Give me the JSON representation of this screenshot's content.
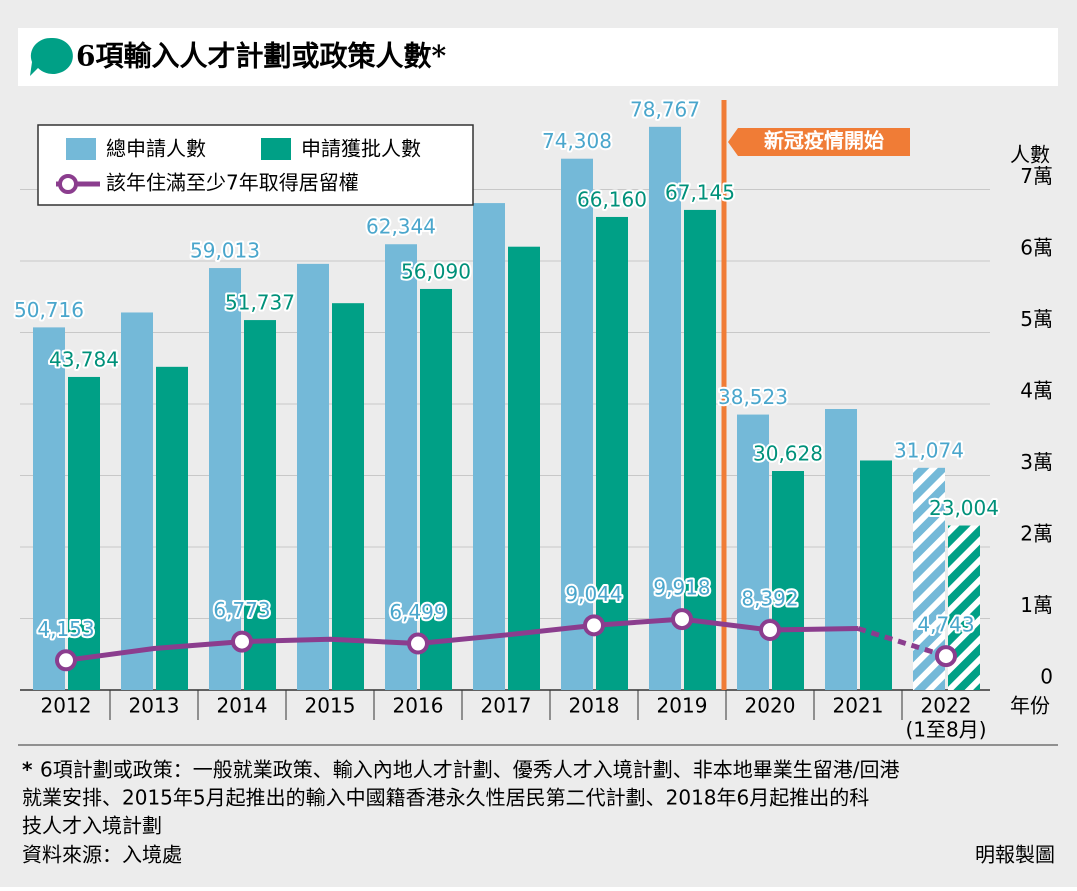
{
  "chart_data": {
    "type": "bar_line",
    "title": "6項輸入人才計劃或政策人數*",
    "y_axis_label": "人數",
    "x_axis_label": "年份",
    "categories": [
      "2012",
      "2013",
      "2014",
      "2015",
      "2016",
      "2017",
      "2018",
      "2019",
      "2020",
      "2021",
      "2022"
    ],
    "last_category_note": "(1至8月)",
    "partial_last": true,
    "series": [
      {
        "name": "總申請人數",
        "color": "#74b9d8",
        "label_color": "#4aa6cc",
        "values": [
          50716,
          52800,
          59013,
          59600,
          62344,
          68100,
          74308,
          78767,
          38523,
          39300,
          31074
        ],
        "value_labels": [
          "50,716",
          null,
          "59,013",
          null,
          "62,344",
          null,
          "74,308",
          "78,767",
          "38,523",
          null,
          "31,074"
        ]
      },
      {
        "name": "申請獲批人數",
        "color": "#00a086",
        "label_color": "#00917a",
        "values": [
          43784,
          45200,
          51737,
          54100,
          56090,
          62000,
          66160,
          67145,
          30628,
          32100,
          23004
        ],
        "value_labels": [
          "43,784",
          null,
          "51,737",
          null,
          "56,090",
          null,
          "66,160",
          "67,145",
          "30,628",
          null,
          "23,004"
        ]
      },
      {
        "name": "該年住滿至少7年取得居留權",
        "color": "#8b3d8e",
        "label_color": "#4aa6cc",
        "kind": "line",
        "values": [
          4153,
          5800,
          6773,
          7100,
          6499,
          7700,
          9044,
          9918,
          8392,
          8600,
          4743
        ],
        "value_labels": [
          "4,153",
          null,
          "6,773",
          null,
          "6,499",
          null,
          "9,044",
          "9,918",
          "8,392",
          null,
          "4,743"
        ]
      }
    ],
    "ylim": [
      0,
      80000
    ],
    "yticks": [
      0,
      {
        "value": 10000,
        "label": "1萬"
      },
      {
        "value": 20000,
        "label": "2萬"
      },
      {
        "value": 30000,
        "label": "3萬"
      },
      {
        "value": 40000,
        "label": "4萬"
      },
      {
        "value": 50000,
        "label": "5萬"
      },
      {
        "value": 60000,
        "label": "6萬"
      },
      {
        "value": 70000,
        "label": "7萬"
      }
    ],
    "grid": true,
    "event_annotation": {
      "text": "新冠疫情開始",
      "after_category": 7,
      "color": "#f07c36"
    },
    "footnote": [
      "6項計劃或政策：一般就業政策、輸入內地人才計劃、優秀人才入境計劃、非本地畢業生留港/回港",
      "就業安排、2015年5月起推出的輸入中國籍香港永久性居民第二代計劃、2018年6月起推出的科",
      "技人才入境計劃"
    ],
    "footnote_mark": "*",
    "source": "資料來源：入境處",
    "credit": "明報製圖"
  }
}
